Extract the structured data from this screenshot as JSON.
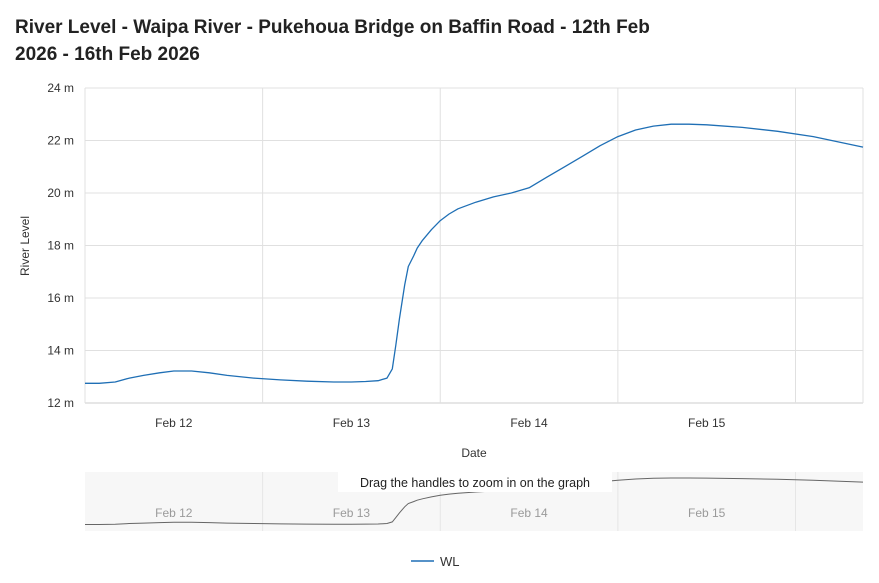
{
  "chart_data": {
    "type": "line",
    "title": "River Level - Waipa River - Pukehoua Bridge on Baffin Road - 12th Feb 2026 - 16th Feb 2026",
    "xlabel": "Date",
    "ylabel": "River Level",
    "x_tick_labels": [
      "Feb 12",
      "Feb 13",
      "Feb 14",
      "Feb 15"
    ],
    "y_tick_labels": [
      "12 m",
      "14 m",
      "16 m",
      "18 m",
      "20 m",
      "22 m",
      "24 m"
    ],
    "ylim": [
      12,
      24
    ],
    "xlim_days": [
      11.5,
      15.88
    ],
    "grid": true,
    "legend_position": "bottom-center",
    "series": [
      {
        "name": "WL",
        "color": "#1f6fb5",
        "x_days": [
          11.5,
          11.58,
          11.67,
          11.75,
          11.83,
          11.92,
          12.0,
          12.1,
          12.2,
          12.3,
          12.45,
          12.6,
          12.75,
          12.9,
          13.0,
          13.08,
          13.15,
          13.2,
          13.23,
          13.25,
          13.27,
          13.3,
          13.32,
          13.35,
          13.37,
          13.4,
          13.45,
          13.5,
          13.55,
          13.6,
          13.7,
          13.8,
          13.9,
          14.0,
          14.1,
          14.2,
          14.3,
          14.4,
          14.5,
          14.6,
          14.7,
          14.8,
          14.9,
          15.0,
          15.2,
          15.4,
          15.6,
          15.88
        ],
        "values": [
          12.75,
          12.75,
          12.8,
          12.95,
          13.05,
          13.15,
          13.22,
          13.22,
          13.15,
          13.05,
          12.95,
          12.88,
          12.83,
          12.8,
          12.8,
          12.82,
          12.85,
          12.95,
          13.3,
          14.2,
          15.2,
          16.5,
          17.2,
          17.6,
          17.9,
          18.2,
          18.6,
          18.95,
          19.2,
          19.4,
          19.65,
          19.85,
          20.0,
          20.2,
          20.6,
          21.0,
          21.4,
          21.8,
          22.15,
          22.4,
          22.55,
          22.62,
          22.62,
          22.6,
          22.5,
          22.35,
          22.15,
          21.75
        ]
      }
    ]
  },
  "navigator": {
    "hint": "Drag the handles to zoom in on the graph",
    "tick_labels": [
      "Feb 12",
      "Feb 13",
      "Feb 14",
      "Feb 15"
    ],
    "line_color": "#666666",
    "background": "#f7f7f7"
  },
  "colors": {
    "grid": "#e0e0e0",
    "axis": "#cccccc"
  }
}
